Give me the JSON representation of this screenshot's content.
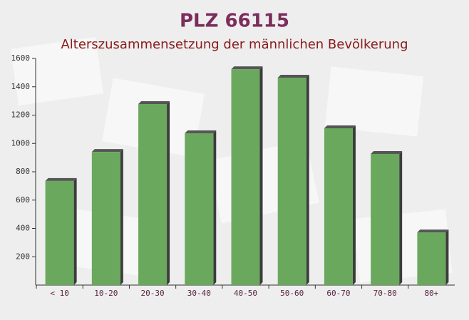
{
  "chart_data": {
    "type": "bar",
    "title": "PLZ 66115",
    "subtitle": "Alterszusammensetzung der männlichen Bevölkerung",
    "categories": [
      "< 10",
      "10-20",
      "20-30",
      "30-40",
      "40-50",
      "50-60",
      "60-70",
      "70-80",
      "80+"
    ],
    "values": [
      735,
      940,
      1278,
      1072,
      1524,
      1464,
      1107,
      926,
      372
    ],
    "color": "#6aa85e",
    "ylim": [
      0,
      1600
    ],
    "yticks": [
      200,
      400,
      600,
      800,
      1000,
      1200,
      1400,
      1600
    ],
    "grid": false
  }
}
